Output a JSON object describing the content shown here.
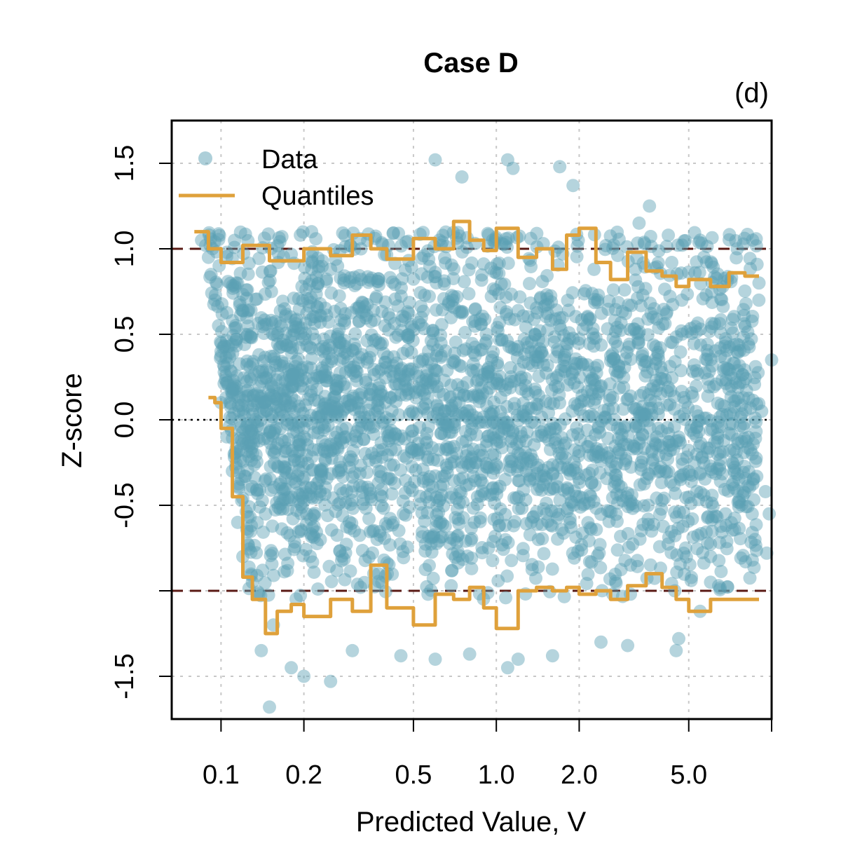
{
  "chart_data": {
    "type": "scatter",
    "title": "Case D",
    "panel_label": "(d)",
    "xlabel": "Predicted Value, V",
    "ylabel": "Z-score",
    "x_scale": "log",
    "xlim": [
      0.0662,
      10.0
    ],
    "ylim": [
      -1.75,
      1.75
    ],
    "x_ticks": [
      0.1,
      0.2,
      0.5,
      1.0,
      2.0,
      5.0
    ],
    "x_tick_labels": [
      "0.1",
      "0.2",
      "0.5",
      "1.0",
      "2.0",
      "5.0"
    ],
    "x_grid_extra": [
      10.0
    ],
    "y_ticks": [
      -1.5,
      -0.5,
      0.0,
      0.5,
      1.0,
      1.5
    ],
    "y_tick_labels": [
      "-1.5",
      "-0.5",
      "0.0",
      "0.5",
      "1.0",
      "1.5"
    ],
    "y_grid_extra": [
      -1.0
    ],
    "reference_lines": [
      {
        "y": 1.0,
        "style": "dashed",
        "color": "#5a1a14"
      },
      {
        "y": -1.0,
        "style": "dashed",
        "color": "#5a1a14"
      },
      {
        "y": 0.0,
        "style": "dotted",
        "color": "#000000"
      }
    ],
    "legend": {
      "position": "top-left",
      "entries": [
        {
          "label": "Data",
          "kind": "point",
          "color": "#5b9fb3"
        },
        {
          "label": "Quantiles",
          "kind": "line",
          "color": "#dfa13b"
        }
      ]
    },
    "colors": {
      "data": "#5b9fb3",
      "quantiles": "#dfa13b",
      "grid": "#c8c8c8"
    },
    "series": [
      {
        "name": "Quantiles upper",
        "x": [
          0.08,
          0.09,
          0.1,
          0.12,
          0.15,
          0.2,
          0.25,
          0.3,
          0.35,
          0.4,
          0.5,
          0.6,
          0.7,
          0.8,
          0.9,
          1.0,
          1.2,
          1.4,
          1.6,
          1.8,
          2.0,
          2.3,
          2.6,
          3.0,
          3.5,
          4.0,
          4.5,
          5.0,
          6.0,
          7.0,
          8.0,
          9.0
        ],
        "values": [
          1.1,
          1.0,
          0.92,
          1.02,
          0.93,
          1.0,
          0.96,
          1.08,
          1.0,
          0.94,
          1.06,
          1.0,
          1.16,
          1.05,
          0.99,
          1.12,
          0.95,
          1.0,
          0.88,
          1.08,
          1.12,
          0.92,
          0.82,
          0.98,
          0.87,
          0.84,
          0.78,
          0.82,
          0.78,
          0.86,
          0.84,
          0.84
        ]
      },
      {
        "name": "Quantiles lower",
        "x": [
          0.09,
          0.095,
          0.1,
          0.11,
          0.12,
          0.13,
          0.145,
          0.16,
          0.18,
          0.2,
          0.25,
          0.3,
          0.35,
          0.4,
          0.5,
          0.6,
          0.7,
          0.8,
          0.9,
          1.0,
          1.2,
          1.4,
          1.6,
          1.8,
          2.0,
          2.3,
          2.6,
          3.0,
          3.5,
          4.0,
          4.5,
          5.0,
          6.0,
          7.0,
          8.0,
          9.0
        ],
        "values": [
          0.13,
          0.1,
          -0.05,
          -0.45,
          -0.92,
          -1.05,
          -1.25,
          -1.12,
          -1.08,
          -1.15,
          -1.05,
          -1.12,
          -0.85,
          -1.1,
          -1.2,
          -1.02,
          -1.05,
          -0.98,
          -1.1,
          -1.22,
          -1.0,
          -0.98,
          -1.0,
          -0.98,
          -1.02,
          -1.0,
          -1.05,
          -0.97,
          -0.9,
          -0.98,
          -1.05,
          -1.12,
          -1.05,
          -1.05,
          -1.05,
          -1.05
        ]
      }
    ],
    "scatter_points": [
      {
        "x": 0.085,
        "y": 1.05
      },
      {
        "x": 0.088,
        "y": 1.02
      },
      {
        "x": 0.09,
        "y": 0.95
      },
      {
        "x": 0.092,
        "y": 0.85
      },
      {
        "x": 0.095,
        "y": 0.7
      },
      {
        "x": 0.098,
        "y": 0.55
      },
      {
        "x": 0.1,
        "y": 0.4
      },
      {
        "x": 0.1,
        "y": 0.1
      },
      {
        "x": 0.105,
        "y": -0.1
      },
      {
        "x": 0.11,
        "y": -0.3
      },
      {
        "x": 0.115,
        "y": -0.6
      },
      {
        "x": 0.12,
        "y": -0.8
      },
      {
        "x": 0.13,
        "y": -0.95
      },
      {
        "x": 0.14,
        "y": -1.35
      },
      {
        "x": 0.15,
        "y": -1.68
      },
      {
        "x": 0.155,
        "y": -1.2
      },
      {
        "x": 0.18,
        "y": -1.45
      },
      {
        "x": 0.2,
        "y": -1.5
      },
      {
        "x": 0.25,
        "y": -1.53
      },
      {
        "x": 0.3,
        "y": -1.35
      },
      {
        "x": 0.45,
        "y": -1.38
      },
      {
        "x": 0.6,
        "y": -1.4
      },
      {
        "x": 0.8,
        "y": -1.37
      },
      {
        "x": 1.1,
        "y": -1.45
      },
      {
        "x": 1.2,
        "y": -1.4
      },
      {
        "x": 1.6,
        "y": -1.38
      },
      {
        "x": 2.4,
        "y": -1.3
      },
      {
        "x": 3.0,
        "y": -1.32
      },
      {
        "x": 4.5,
        "y": -1.35
      },
      {
        "x": 4.6,
        "y": -1.28
      },
      {
        "x": 0.6,
        "y": 1.52
      },
      {
        "x": 0.75,
        "y": 1.42
      },
      {
        "x": 1.1,
        "y": 1.52
      },
      {
        "x": 1.15,
        "y": 1.47
      },
      {
        "x": 1.7,
        "y": 1.48
      },
      {
        "x": 1.9,
        "y": 1.37
      },
      {
        "x": 3.6,
        "y": 1.25
      },
      {
        "x": 3.3,
        "y": 1.15
      },
      {
        "x": 5.5,
        "y": 1.05
      },
      {
        "x": 7.5,
        "y": 1.0
      },
      {
        "x": 9.0,
        "y": 0.8
      },
      {
        "x": 10.0,
        "y": 0.35
      },
      {
        "x": 9.5,
        "y": -0.42
      },
      {
        "x": 9.8,
        "y": -0.55
      },
      {
        "x": 9.6,
        "y": -0.78
      },
      {
        "x": 8.5,
        "y": -0.55
      },
      {
        "x": 8.7,
        "y": -0.7
      },
      {
        "x": 9.2,
        "y": 0.05
      },
      {
        "x": 8.5,
        "y": -0.2
      },
      {
        "x": 6.5,
        "y": 0.42
      },
      {
        "x": 7.0,
        "y": 0.18
      },
      {
        "x": 7.2,
        "y": -0.25
      },
      {
        "x": 6.8,
        "y": -0.55
      },
      {
        "x": 6.0,
        "y": -0.8
      },
      {
        "x": 6.0,
        "y": -0.95
      },
      {
        "x": 5.5,
        "y": -1.12
      }
    ]
  }
}
